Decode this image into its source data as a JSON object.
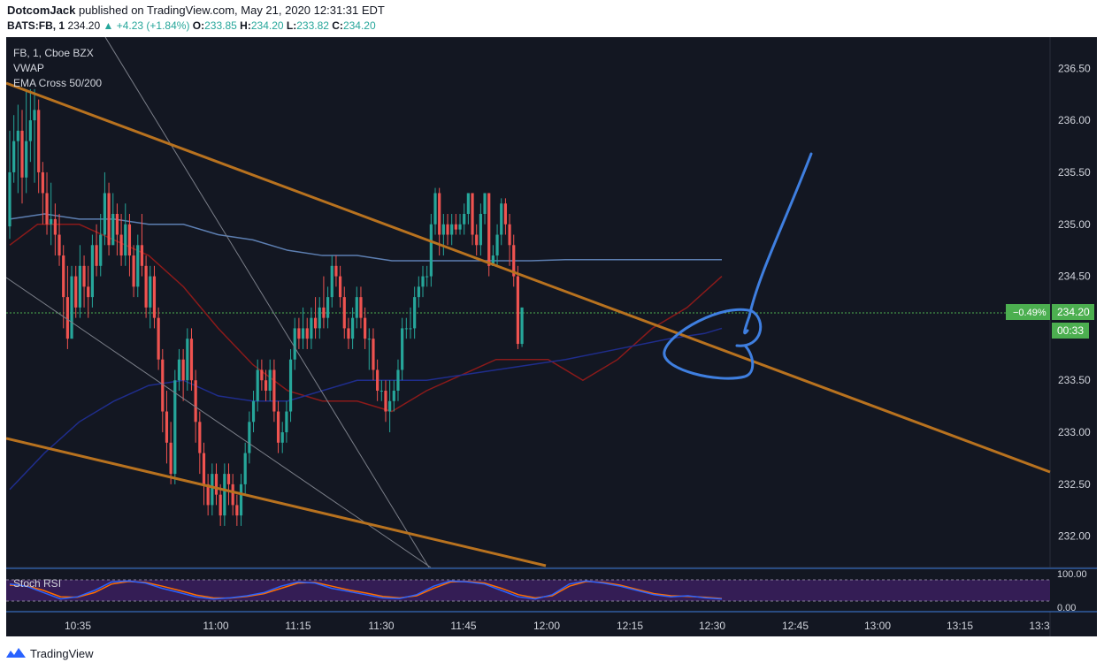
{
  "header": {
    "author": "DotcomJack",
    "published_text": "published on TradingView.com, May 21, 2020 12:31:31 EDT",
    "symbol_line": {
      "symbol": "BATS:FB, 1",
      "last": "234.20",
      "change": "▲ +4.23 (+1.84%)",
      "o_label": "O:",
      "o": "233.85",
      "h_label": "H:",
      "h": "234.20",
      "l_label": "L:",
      "l": "233.82",
      "c_label": "C:",
      "c": "234.20"
    }
  },
  "legend": {
    "symbol": "FB, 1, Cboe BZX",
    "indicator1": "VWAP",
    "indicator2": "EMA Cross 50/200"
  },
  "price_axis": {
    "ticks": [
      "236.50",
      "236.00",
      "235.50",
      "235.00",
      "234.50",
      "233.50",
      "233.00",
      "232.50",
      "232.00"
    ],
    "current_price": "234.20",
    "change_pct": "−0.49%",
    "countdown": "00:33"
  },
  "time_axis": {
    "ticks": [
      "10:35",
      "11:00",
      "11:15",
      "11:30",
      "11:45",
      "12:00",
      "12:15",
      "12:30",
      "12:45",
      "13:00",
      "13:15",
      "13:3"
    ]
  },
  "stoch": {
    "label": "Stoch RSI",
    "ticks": [
      "100.00",
      "0.00"
    ]
  },
  "footer": {
    "brand": "TradingView"
  },
  "colors": {
    "background": "#131722",
    "up": "#26a69a",
    "down": "#ef5350",
    "trendline": "#b8721f",
    "vwap": "#1f2d8c",
    "ema_fast": "#8b1a1a",
    "ema_slow": "#5d7fb2",
    "annotation": "#3f7fe0",
    "stoch_k": "#2962ff",
    "stoch_d": "#ff6d00"
  },
  "chart_data": {
    "type": "candlestick",
    "ylim": [
      231.7,
      236.8
    ],
    "x_time_labels": [
      "10:35",
      "11:00",
      "11:15",
      "11:30",
      "11:45",
      "12:00",
      "12:15",
      "12:30"
    ],
    "candles": [
      [
        234.98,
        235.5,
        235.9,
        234.86
      ],
      [
        235.5,
        235.8,
        236.05,
        235.4
      ],
      [
        235.8,
        235.9,
        236.15,
        235.3
      ],
      [
        235.9,
        235.45,
        236.1,
        235.2
      ],
      [
        235.45,
        235.8,
        236.3,
        235.3
      ],
      [
        235.8,
        236.0,
        236.3,
        235.6
      ],
      [
        236.0,
        236.1,
        236.3,
        235.4
      ],
      [
        236.1,
        235.5,
        236.2,
        235.3
      ],
      [
        235.5,
        235.3,
        235.6,
        235.0
      ],
      [
        235.3,
        235.0,
        235.5,
        234.9
      ],
      [
        235.0,
        235.05,
        235.4,
        234.8
      ],
      [
        235.05,
        234.9,
        235.2,
        234.7
      ],
      [
        234.9,
        234.7,
        235.1,
        234.6
      ],
      [
        234.7,
        234.3,
        234.8,
        234.0
      ],
      [
        234.3,
        233.9,
        234.6,
        233.8
      ],
      [
        233.9,
        234.5,
        234.6,
        233.9
      ],
      [
        234.5,
        234.2,
        234.6,
        234.1
      ],
      [
        234.2,
        234.6,
        234.8,
        234.1
      ],
      [
        234.6,
        234.4,
        234.7,
        234.2
      ],
      [
        234.4,
        234.3,
        234.6,
        234.1
      ],
      [
        234.3,
        234.8,
        234.9,
        234.2
      ],
      [
        234.8,
        234.6,
        235.0,
        234.5
      ],
      [
        234.6,
        234.9,
        235.1,
        234.5
      ],
      [
        234.9,
        235.3,
        235.5,
        234.8
      ],
      [
        235.3,
        234.8,
        235.4,
        234.7
      ],
      [
        234.8,
        235.1,
        235.3,
        234.8
      ],
      [
        235.1,
        234.9,
        235.2,
        234.7
      ],
      [
        234.9,
        234.7,
        235.1,
        234.6
      ],
      [
        234.7,
        235.0,
        235.2,
        234.6
      ],
      [
        235.0,
        234.7,
        235.1,
        234.5
      ],
      [
        234.7,
        234.4,
        234.8,
        234.3
      ],
      [
        234.4,
        234.8,
        234.9,
        234.3
      ],
      [
        234.8,
        234.6,
        235.1,
        234.5
      ],
      [
        234.6,
        234.2,
        234.7,
        234.1
      ],
      [
        234.2,
        234.5,
        234.6,
        234.0
      ],
      [
        234.5,
        234.1,
        234.6,
        234.0
      ],
      [
        234.1,
        233.7,
        234.2,
        233.6
      ],
      [
        233.7,
        233.2,
        233.8,
        233.0
      ],
      [
        233.2,
        232.9,
        233.4,
        232.7
      ],
      [
        232.9,
        232.6,
        233.1,
        232.5
      ],
      [
        232.6,
        233.5,
        233.6,
        232.5
      ],
      [
        233.5,
        233.7,
        233.8,
        233.4
      ],
      [
        233.7,
        233.5,
        233.8,
        233.3
      ],
      [
        233.5,
        233.9,
        234.0,
        233.4
      ],
      [
        233.9,
        233.5,
        234.0,
        233.4
      ],
      [
        233.5,
        233.1,
        233.6,
        232.9
      ],
      [
        233.1,
        232.8,
        233.2,
        232.6
      ],
      [
        232.8,
        232.5,
        232.9,
        232.3
      ],
      [
        232.5,
        232.3,
        232.6,
        232.2
      ],
      [
        232.3,
        232.6,
        232.7,
        232.2
      ],
      [
        232.6,
        232.4,
        232.7,
        232.3
      ],
      [
        232.4,
        232.2,
        232.5,
        232.1
      ],
      [
        232.2,
        232.6,
        232.7,
        232.1
      ],
      [
        232.6,
        232.5,
        232.7,
        232.3
      ],
      [
        232.5,
        232.3,
        232.6,
        232.2
      ],
      [
        232.3,
        232.2,
        232.4,
        232.1
      ],
      [
        232.2,
        232.5,
        232.6,
        232.1
      ],
      [
        232.5,
        232.8,
        232.9,
        232.4
      ],
      [
        232.8,
        233.1,
        233.2,
        232.7
      ],
      [
        233.1,
        233.3,
        233.4,
        233.0
      ],
      [
        233.3,
        233.6,
        233.7,
        233.2
      ],
      [
        233.6,
        233.5,
        233.7,
        233.4
      ],
      [
        233.5,
        233.4,
        233.6,
        233.3
      ],
      [
        233.4,
        233.6,
        233.7,
        233.3
      ],
      [
        233.6,
        233.2,
        233.7,
        233.1
      ],
      [
        233.2,
        232.9,
        233.3,
        232.8
      ],
      [
        232.9,
        233.0,
        233.1,
        232.8
      ],
      [
        233.0,
        233.2,
        233.3,
        232.9
      ],
      [
        233.2,
        233.7,
        233.8,
        233.1
      ],
      [
        233.7,
        234.0,
        234.1,
        233.6
      ],
      [
        234.0,
        233.9,
        234.1,
        233.8
      ],
      [
        233.9,
        234.0,
        234.2,
        233.8
      ],
      [
        234.0,
        233.9,
        234.1,
        233.8
      ],
      [
        233.9,
        234.1,
        234.2,
        233.8
      ],
      [
        234.1,
        234.0,
        234.3,
        233.9
      ],
      [
        234.0,
        234.2,
        234.3,
        233.9
      ],
      [
        234.2,
        234.1,
        234.5,
        234.0
      ],
      [
        234.1,
        234.3,
        234.4,
        234.0
      ],
      [
        234.3,
        234.6,
        234.7,
        234.2
      ],
      [
        234.6,
        234.5,
        234.7,
        234.4
      ],
      [
        234.5,
        234.3,
        234.6,
        234.2
      ],
      [
        234.3,
        234.0,
        234.4,
        233.9
      ],
      [
        234.0,
        233.9,
        234.1,
        233.8
      ],
      [
        233.9,
        234.1,
        234.2,
        233.8
      ],
      [
        234.1,
        234.3,
        234.4,
        234.0
      ],
      [
        234.3,
        234.1,
        234.4,
        234.0
      ],
      [
        234.1,
        233.9,
        234.2,
        233.8
      ],
      [
        233.9,
        233.9,
        234.0,
        233.6
      ],
      [
        233.9,
        233.6,
        234.0,
        233.5
      ],
      [
        233.6,
        233.4,
        233.7,
        233.3
      ],
      [
        233.4,
        233.4,
        233.5,
        233.3
      ],
      [
        233.4,
        233.2,
        233.5,
        233.1
      ],
      [
        233.2,
        233.3,
        233.5,
        233.0
      ],
      [
        233.3,
        233.4,
        233.5,
        233.2
      ],
      [
        233.4,
        233.6,
        233.7,
        233.3
      ],
      [
        233.6,
        234.0,
        234.1,
        233.5
      ],
      [
        234.0,
        234.0,
        234.1,
        233.9
      ],
      [
        234.0,
        234.0,
        234.2,
        233.9
      ],
      [
        234.0,
        234.3,
        234.4,
        233.9
      ],
      [
        234.3,
        234.4,
        234.5,
        234.2
      ],
      [
        234.4,
        234.5,
        234.6,
        234.3
      ],
      [
        234.5,
        234.5,
        234.6,
        234.4
      ],
      [
        234.5,
        235.0,
        235.1,
        234.4
      ],
      [
        235.0,
        235.3,
        235.35,
        234.9
      ],
      [
        235.3,
        234.9,
        235.35,
        234.7
      ],
      [
        234.9,
        235.0,
        235.1,
        234.7
      ],
      [
        235.0,
        234.9,
        235.1,
        234.8
      ],
      [
        234.9,
        235.0,
        235.1,
        234.8
      ],
      [
        235.0,
        234.95,
        235.1,
        234.9
      ],
      [
        234.95,
        235.0,
        235.1,
        234.9
      ],
      [
        235.0,
        235.1,
        235.2,
        234.9
      ],
      [
        235.1,
        235.3,
        235.3,
        235.0
      ],
      [
        235.3,
        234.9,
        235.3,
        234.8
      ],
      [
        234.9,
        234.8,
        235.0,
        234.7
      ],
      [
        234.8,
        235.1,
        235.2,
        234.7
      ],
      [
        235.1,
        235.3,
        235.3,
        235.0
      ],
      [
        235.3,
        234.6,
        235.3,
        234.5
      ],
      [
        234.6,
        234.7,
        234.8,
        234.6
      ],
      [
        234.7,
        234.9,
        235.0,
        234.6
      ],
      [
        234.9,
        235.2,
        235.25,
        234.8
      ],
      [
        235.2,
        235.0,
        235.25,
        234.9
      ],
      [
        235.0,
        234.8,
        235.1,
        234.6
      ],
      [
        234.8,
        234.5,
        234.9,
        234.4
      ],
      [
        234.5,
        233.85,
        234.6,
        233.8
      ],
      [
        233.85,
        234.2,
        234.2,
        233.82
      ]
    ],
    "ema_fast_points": [
      [
        234.8,
        0
      ],
      [
        235.0,
        8
      ],
      [
        235.0,
        20
      ],
      [
        234.85,
        30
      ],
      [
        234.7,
        40
      ],
      [
        234.4,
        50
      ],
      [
        234.0,
        60
      ],
      [
        233.65,
        70
      ],
      [
        233.4,
        80
      ],
      [
        233.3,
        90
      ],
      [
        233.3,
        100
      ],
      [
        233.2,
        110
      ],
      [
        233.4,
        120
      ],
      [
        233.55,
        130
      ],
      [
        233.7,
        140
      ],
      [
        233.7,
        155
      ],
      [
        233.5,
        165
      ],
      [
        233.7,
        175
      ],
      [
        234.0,
        185
      ],
      [
        234.2,
        195
      ],
      [
        234.5,
        205
      ]
    ],
    "vwap_points": [
      [
        232.45,
        0
      ],
      [
        232.8,
        10
      ],
      [
        233.1,
        20
      ],
      [
        233.3,
        30
      ],
      [
        233.45,
        40
      ],
      [
        233.5,
        50
      ],
      [
        233.35,
        60
      ],
      [
        233.3,
        70
      ],
      [
        233.3,
        80
      ],
      [
        233.4,
        90
      ],
      [
        233.5,
        100
      ],
      [
        233.5,
        110
      ],
      [
        233.5,
        120
      ],
      [
        233.55,
        130
      ],
      [
        233.6,
        140
      ],
      [
        233.65,
        150
      ],
      [
        233.7,
        160
      ],
      [
        233.8,
        175
      ],
      [
        233.9,
        190
      ],
      [
        233.95,
        200
      ],
      [
        234.0,
        205
      ]
    ],
    "ema_slow_points": [
      [
        235.05,
        0
      ],
      [
        235.1,
        10
      ],
      [
        235.05,
        20
      ],
      [
        235.05,
        30
      ],
      [
        235.0,
        40
      ],
      [
        235.0,
        50
      ],
      [
        234.9,
        60
      ],
      [
        234.85,
        70
      ],
      [
        234.75,
        80
      ],
      [
        234.7,
        90
      ],
      [
        234.7,
        100
      ],
      [
        234.65,
        110
      ],
      [
        234.65,
        120
      ],
      [
        234.65,
        130
      ],
      [
        234.65,
        140
      ],
      [
        234.65,
        150
      ],
      [
        234.66,
        160
      ],
      [
        234.66,
        175
      ],
      [
        234.66,
        190
      ],
      [
        234.66,
        200
      ],
      [
        234.66,
        205
      ]
    ],
    "stoch_k": [
      80,
      70,
      40,
      10,
      20,
      50,
      90,
      95,
      85,
      60,
      40,
      20,
      10,
      15,
      25,
      40,
      70,
      90,
      85,
      60,
      45,
      30,
      15,
      12,
      30,
      70,
      95,
      90,
      80,
      50,
      20,
      10,
      30,
      80,
      95,
      85,
      70,
      50,
      30,
      20,
      25,
      15,
      10
    ],
    "stoch_d": [
      75,
      72,
      50,
      20,
      18,
      40,
      80,
      92,
      88,
      70,
      50,
      28,
      15,
      14,
      22,
      35,
      60,
      85,
      88,
      70,
      52,
      38,
      22,
      15,
      25,
      60,
      90,
      92,
      85,
      60,
      30,
      15,
      25,
      70,
      92,
      88,
      75,
      55,
      35,
      25,
      22,
      18,
      12
    ]
  }
}
